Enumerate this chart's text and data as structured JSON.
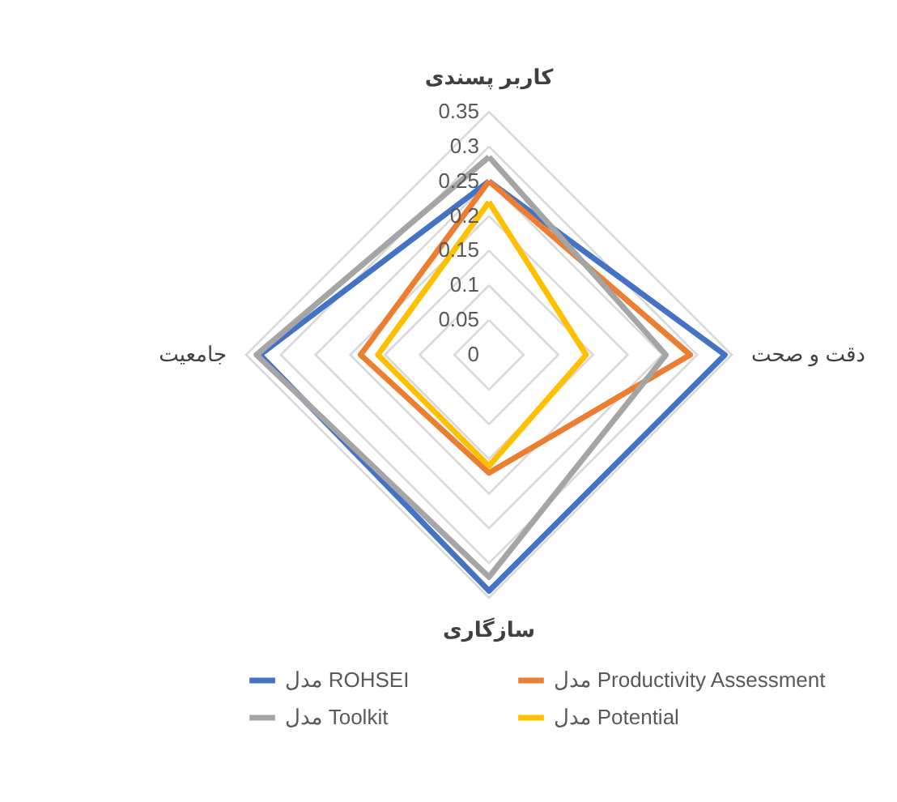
{
  "chart_data": {
    "type": "radar",
    "categories": [
      "کاربر پسندی",
      "دقت و صحت",
      "سازگاری",
      "جامعیت"
    ],
    "series": [
      {
        "name": "مدل ROHSEI",
        "color": "#4472c4",
        "values": [
          0.25,
          0.34,
          0.34,
          0.33
        ]
      },
      {
        "name": "مدل Productivity Assessment",
        "color": "#ed7d31",
        "values": [
          0.25,
          0.29,
          0.17,
          0.185
        ]
      },
      {
        "name": "مدل Toolkit",
        "color": "#a5a5a5",
        "values": [
          0.285,
          0.255,
          0.32,
          0.335
        ]
      },
      {
        "name": "مدل Potential",
        "color": "#ffc000",
        "values": [
          0.22,
          0.14,
          0.16,
          0.16
        ]
      }
    ],
    "ylim": [
      0,
      0.35
    ],
    "yticks": [
      0,
      0.05,
      0.1,
      0.15,
      0.2,
      0.25,
      0.3,
      0.35
    ],
    "grid": true,
    "legend": "bottom",
    "line_style": "solid",
    "marker": "none"
  }
}
